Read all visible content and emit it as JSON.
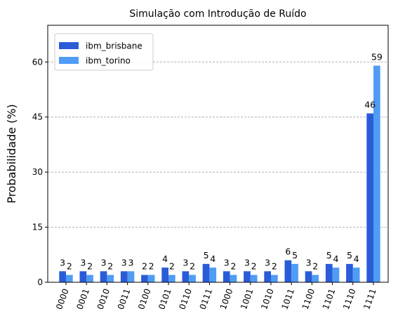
{
  "chart_data": {
    "type": "bar",
    "title": "Simulação com Introdução de Ruído",
    "xlabel": "",
    "ylabel": "Probabilidade (%)",
    "ylim": [
      0,
      70
    ],
    "yticks": [
      0,
      15,
      30,
      45,
      60
    ],
    "grid": "horizontal-dashed",
    "legend_position": "top-left",
    "categories": [
      "0000",
      "0001",
      "0010",
      "0011",
      "0100",
      "0101",
      "0110",
      "0111",
      "1000",
      "1001",
      "1010",
      "1011",
      "1100",
      "1101",
      "1110",
      "1111"
    ],
    "series": [
      {
        "name": "ibm_brisbane",
        "color": "#2a5cd8",
        "values": [
          3,
          3,
          3,
          3,
          2,
          4,
          3,
          5,
          3,
          3,
          3,
          6,
          3,
          5,
          5,
          46
        ]
      },
      {
        "name": "ibm_torino",
        "color": "#4f9cf5",
        "values": [
          2,
          2,
          2,
          3,
          2,
          2,
          2,
          4,
          2,
          2,
          2,
          5,
          2,
          4,
          4,
          59
        ]
      }
    ]
  }
}
